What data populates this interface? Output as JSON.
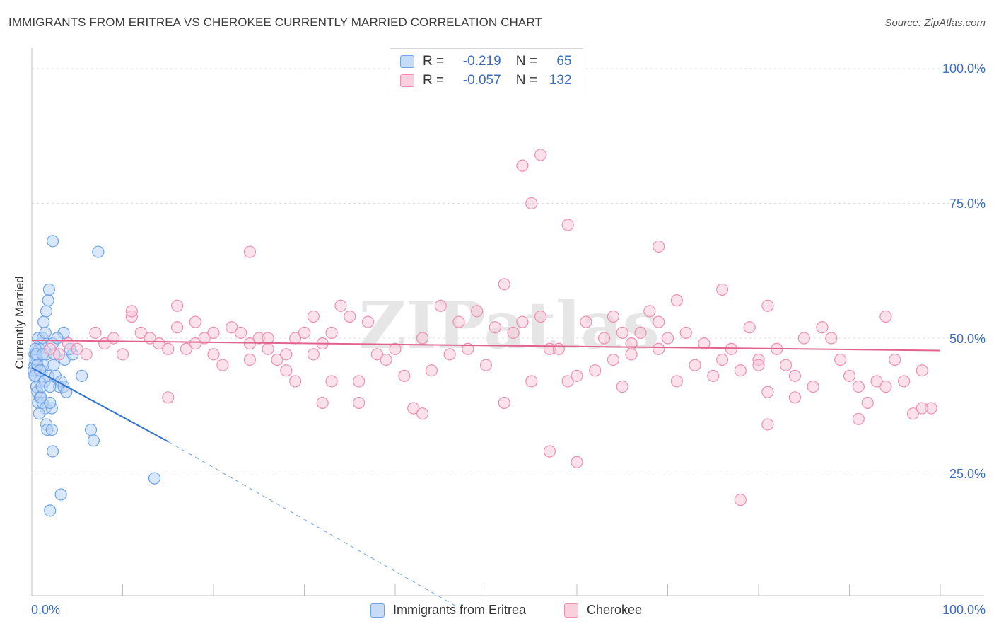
{
  "title": "IMMIGRANTS FROM ERITREA VS CHEROKEE CURRENTLY MARRIED CORRELATION CHART",
  "source": "Source: ZipAtlas.com",
  "watermark": "ZIPatlas",
  "legend": {
    "rows": [
      {
        "r_label": "R =",
        "r_value": "-0.219",
        "n_label": "N =",
        "n_value": "65",
        "color": "#6fa3e8"
      },
      {
        "r_label": "R =",
        "r_value": "-0.057",
        "n_label": "N =",
        "n_value": "132",
        "color": "#f08fb0"
      }
    ]
  },
  "chart_data": {
    "type": "scatter",
    "ylabel": "Currently Married",
    "xlabel": "",
    "x_tick_labels": {
      "left": "0.0%",
      "right": "100.0%"
    },
    "y_tick_labels": [
      "100.0%",
      "75.0%",
      "50.0%",
      "25.0%"
    ],
    "xlim": [
      0,
      100
    ],
    "ylim": [
      0,
      100
    ],
    "series": [
      {
        "name": "Immigrants from Eritrea",
        "color": "#6fa3e8",
        "fill": "#b9d3f5",
        "trend": {
          "x0": 0,
          "y0": 44.5,
          "x1": 15,
          "y1": 30.8,
          "dash_to_x": 47,
          "dash_to_y": 0
        },
        "points": [
          [
            0.3,
            45
          ],
          [
            0.5,
            44
          ],
          [
            0.4,
            43
          ],
          [
            0.6,
            46
          ],
          [
            0.3,
            47
          ],
          [
            0.8,
            48
          ],
          [
            1.0,
            49
          ],
          [
            0.7,
            50
          ],
          [
            1.2,
            50
          ],
          [
            0.9,
            42
          ],
          [
            0.5,
            41
          ],
          [
            1.1,
            44
          ],
          [
            1.3,
            45
          ],
          [
            1.6,
            47
          ],
          [
            1.8,
            43
          ],
          [
            1.4,
            42
          ],
          [
            0.6,
            40
          ],
          [
            0.9,
            39
          ],
          [
            0.7,
            38
          ],
          [
            1.2,
            38
          ],
          [
            1.5,
            37
          ],
          [
            0.8,
            36
          ],
          [
            2.2,
            37
          ],
          [
            2.0,
            38
          ],
          [
            1.5,
            51
          ],
          [
            1.3,
            53
          ],
          [
            1.6,
            55
          ],
          [
            1.8,
            57
          ],
          [
            1.9,
            59
          ],
          [
            2.3,
            49
          ],
          [
            2.5,
            47
          ],
          [
            2.4,
            45
          ],
          [
            2.6,
            43
          ],
          [
            3.0,
            41
          ],
          [
            3.2,
            42
          ],
          [
            3.5,
            41
          ],
          [
            3.8,
            40
          ],
          [
            3.6,
            46
          ],
          [
            4.5,
            47
          ],
          [
            4.2,
            48
          ],
          [
            5.5,
            43
          ],
          [
            3.5,
            51
          ],
          [
            2.8,
            50
          ],
          [
            0.4,
            46
          ],
          [
            0.2,
            44
          ],
          [
            0.4,
            48
          ],
          [
            0.6,
            45
          ],
          [
            1.0,
            39
          ],
          [
            1.6,
            34
          ],
          [
            1.7,
            33
          ],
          [
            2.2,
            33
          ],
          [
            2.3,
            29
          ],
          [
            2.3,
            68
          ],
          [
            6.5,
            33
          ],
          [
            6.8,
            31
          ],
          [
            7.3,
            66
          ],
          [
            3.2,
            21
          ],
          [
            2.0,
            18
          ],
          [
            13.5,
            24
          ],
          [
            0.3,
            43
          ],
          [
            0.5,
            47
          ],
          [
            1.2,
            47
          ],
          [
            0.9,
            44
          ],
          [
            1.1,
            41
          ],
          [
            2.0,
            41
          ]
        ]
      },
      {
        "name": "Cherokee",
        "color": "#f08fb0",
        "fill": "#f8c8d8",
        "trend": {
          "x0": 0,
          "y0": 49.6,
          "x1": 100,
          "y1": 47.7
        },
        "points": [
          [
            2,
            48
          ],
          [
            3,
            47
          ],
          [
            4,
            49
          ],
          [
            5,
            48
          ],
          [
            6,
            47
          ],
          [
            7,
            51
          ],
          [
            8,
            49
          ],
          [
            9,
            50
          ],
          [
            10,
            47
          ],
          [
            11,
            54
          ],
          [
            12,
            51
          ],
          [
            13,
            50
          ],
          [
            14,
            49
          ],
          [
            15,
            48
          ],
          [
            16,
            52
          ],
          [
            17,
            48
          ],
          [
            18,
            49
          ],
          [
            19,
            50
          ],
          [
            20,
            47
          ],
          [
            21,
            45
          ],
          [
            22,
            52
          ],
          [
            23,
            51
          ],
          [
            24,
            49
          ],
          [
            25,
            50
          ],
          [
            26,
            48
          ],
          [
            27,
            46
          ],
          [
            28,
            44
          ],
          [
            29,
            50
          ],
          [
            30,
            51
          ],
          [
            31,
            54
          ],
          [
            32,
            49
          ],
          [
            33,
            42
          ],
          [
            34,
            56
          ],
          [
            35,
            54
          ],
          [
            36,
            42
          ],
          [
            37,
            53
          ],
          [
            38,
            47
          ],
          [
            39,
            46
          ],
          [
            40,
            48
          ],
          [
            41,
            43
          ],
          [
            42,
            37
          ],
          [
            43,
            50
          ],
          [
            44,
            44
          ],
          [
            45,
            56
          ],
          [
            46,
            47
          ],
          [
            47,
            53
          ],
          [
            48,
            48
          ],
          [
            49,
            55
          ],
          [
            50,
            45
          ],
          [
            51,
            52
          ],
          [
            52,
            38
          ],
          [
            53,
            51
          ],
          [
            54,
            53
          ],
          [
            55,
            42
          ],
          [
            56,
            54
          ],
          [
            57,
            48
          ],
          [
            58,
            48
          ],
          [
            59,
            42
          ],
          [
            60,
            43
          ],
          [
            61,
            53
          ],
          [
            62,
            44
          ],
          [
            63,
            50
          ],
          [
            64,
            54
          ],
          [
            65,
            41
          ],
          [
            66,
            47
          ],
          [
            67,
            51
          ],
          [
            68,
            55
          ],
          [
            69,
            48
          ],
          [
            70,
            50
          ],
          [
            71,
            42
          ],
          [
            72,
            51
          ],
          [
            73,
            45
          ],
          [
            74,
            49
          ],
          [
            75,
            43
          ],
          [
            76,
            46
          ],
          [
            77,
            48
          ],
          [
            78,
            44
          ],
          [
            79,
            52
          ],
          [
            80,
            46
          ],
          [
            81,
            40
          ],
          [
            82,
            48
          ],
          [
            83,
            45
          ],
          [
            84,
            43
          ],
          [
            85,
            50
          ],
          [
            86,
            41
          ],
          [
            87,
            52
          ],
          [
            88,
            50
          ],
          [
            89,
            46
          ],
          [
            90,
            43
          ],
          [
            91,
            41
          ],
          [
            92,
            38
          ],
          [
            93,
            42
          ],
          [
            94,
            54
          ],
          [
            95,
            46
          ],
          [
            96,
            42
          ],
          [
            97,
            36
          ],
          [
            98,
            44
          ],
          [
            99,
            37
          ],
          [
            54,
            82
          ],
          [
            56,
            84
          ],
          [
            55,
            75
          ],
          [
            59,
            71
          ],
          [
            52,
            60
          ],
          [
            69,
            67
          ],
          [
            76,
            59
          ],
          [
            71,
            57
          ],
          [
            81,
            56
          ],
          [
            69,
            53
          ],
          [
            65,
            51
          ],
          [
            64,
            46
          ],
          [
            66,
            49
          ],
          [
            80,
            45
          ],
          [
            84,
            39
          ],
          [
            78,
            20
          ],
          [
            81,
            34
          ],
          [
            94,
            41
          ],
          [
            98,
            37
          ],
          [
            91,
            35
          ],
          [
            43,
            36
          ],
          [
            57,
            29
          ],
          [
            60,
            27
          ],
          [
            36,
            38
          ],
          [
            29,
            42
          ],
          [
            32,
            38
          ],
          [
            24,
            66
          ],
          [
            15,
            39
          ],
          [
            11,
            55
          ],
          [
            16,
            56
          ],
          [
            18,
            53
          ],
          [
            20,
            51
          ],
          [
            24,
            46
          ],
          [
            26,
            50
          ],
          [
            28,
            47
          ],
          [
            31,
            47
          ],
          [
            33,
            51
          ]
        ]
      }
    ],
    "grid": true,
    "legend_placement": "bottom-center"
  }
}
